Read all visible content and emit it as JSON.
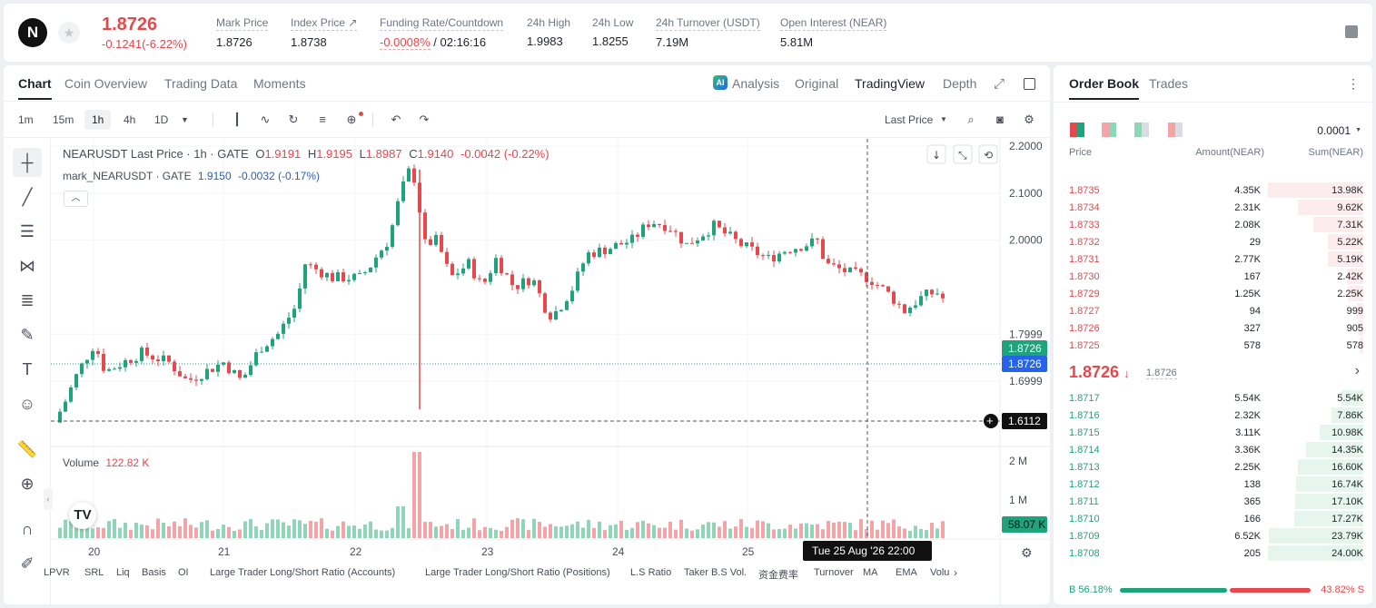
{
  "header": {
    "logo_text": "N",
    "last_price": "1.8726",
    "price_change": "-0.1241(-6.22%)",
    "stats": [
      {
        "label": "Mark Price",
        "value": "1.8726"
      },
      {
        "label": "Index Price ↗",
        "value": "1.8738"
      },
      {
        "label": "Funding Rate/Countdown",
        "value_red": "-0.0008%",
        "value": "/ 02:16:16"
      },
      {
        "label": "24h High",
        "value": "1.9983"
      },
      {
        "label": "24h Low",
        "value": "1.8255"
      },
      {
        "label": "24h Turnover (USDT)",
        "value": "7.19M"
      },
      {
        "label": "Open Interest (NEAR)",
        "value": "5.81M"
      }
    ]
  },
  "chart_tabs": [
    "Chart",
    "Coin Overview",
    "Trading Data",
    "Moments"
  ],
  "chart_views": [
    "Analysis",
    "Original",
    "TradingView",
    "Depth"
  ],
  "timeframes": [
    "1m",
    "15m",
    "1h",
    "4h",
    "1D"
  ],
  "price_source": "Last Price",
  "legend": {
    "main": "NEARUSDT Last Price · 1h · GATE",
    "o_label": "O",
    "o": "1.9191",
    "h_label": "H",
    "h": "1.9195",
    "l_label": "L",
    "l": "1.8987",
    "c_label": "C",
    "c": "1.9140",
    "chg": "-0.0042 (-0.22%)",
    "mark": "mark_NEARUSDT · GATE",
    "mark_v": "1.9150",
    "mark_chg": "-0.0032 (-0.17%)",
    "volume_label": "Volume",
    "volume_value": "122.82 K"
  },
  "price_labels": {
    "last": "1.8726",
    "mark": "1.8726",
    "cross": "1.6112",
    "vol_last": "58.07 K"
  },
  "crosshair_time": "Tue 25 Aug '26   22:00",
  "bottom_indicators": [
    "LPVR",
    "SRL",
    "Liq",
    "Basis",
    "OI",
    "Large Trader Long/Short Ratio (Accounts)",
    "Large Trader Long/Short Ratio (Positions)",
    "L.S Ratio",
    "Taker B.S Vol.",
    "资金费率",
    "Turnover",
    "MA",
    "EMA",
    "Volu"
  ],
  "chart_data": {
    "type": "candlestick",
    "y_ticks": [
      "2.2000",
      "2.1000",
      "2.0000",
      "1.7999",
      "1.6999"
    ],
    "vol_ticks": [
      "2 M",
      "1 M"
    ],
    "x_ticks": [
      "20",
      "21",
      "22",
      "23",
      "24",
      "25"
    ],
    "ylim": [
      1.6112,
      2.2
    ],
    "colors": {
      "up": "#1fa37a",
      "down": "#e5484d",
      "up_vol": "#8fd6b9",
      "down_vol": "#f4a4a7"
    }
  },
  "orderbook": {
    "tabs": [
      "Order Book",
      "Trades"
    ],
    "precision": "0.0001",
    "columns": [
      "Price",
      "Amount(NEAR)",
      "Sum(NEAR)"
    ],
    "asks": [
      {
        "p": "1.8735",
        "a": "4.35K",
        "s": "13.98K",
        "d": 1.0
      },
      {
        "p": "1.8734",
        "a": "2.31K",
        "s": "9.62K",
        "d": 0.69
      },
      {
        "p": "1.8733",
        "a": "2.08K",
        "s": "7.31K",
        "d": 0.52
      },
      {
        "p": "1.8732",
        "a": "29",
        "s": "5.22K",
        "d": 0.37
      },
      {
        "p": "1.8731",
        "a": "2.77K",
        "s": "5.19K",
        "d": 0.37
      },
      {
        "p": "1.8730",
        "a": "167",
        "s": "2.42K",
        "d": 0.17
      },
      {
        "p": "1.8729",
        "a": "1.25K",
        "s": "2.25K",
        "d": 0.16
      },
      {
        "p": "1.8727",
        "a": "94",
        "s": "999",
        "d": 0.07
      },
      {
        "p": "1.8726",
        "a": "327",
        "s": "905",
        "d": 0.06
      },
      {
        "p": "1.8725",
        "a": "578",
        "s": "578",
        "d": 0.04
      }
    ],
    "mid_price": "1.8726",
    "mid_arrow": "↓",
    "mid_mark": "1.8726",
    "bids": [
      {
        "p": "1.8717",
        "a": "5.54K",
        "s": "5.54K",
        "d": 0.23
      },
      {
        "p": "1.8716",
        "a": "2.32K",
        "s": "7.86K",
        "d": 0.33
      },
      {
        "p": "1.8715",
        "a": "3.11K",
        "s": "10.98K",
        "d": 0.46
      },
      {
        "p": "1.8714",
        "a": "3.36K",
        "s": "14.35K",
        "d": 0.6
      },
      {
        "p": "1.8713",
        "a": "2.25K",
        "s": "16.60K",
        "d": 0.69
      },
      {
        "p": "1.8712",
        "a": "138",
        "s": "16.74K",
        "d": 0.7
      },
      {
        "p": "1.8711",
        "a": "365",
        "s": "17.10K",
        "d": 0.71
      },
      {
        "p": "1.8710",
        "a": "166",
        "s": "17.27K",
        "d": 0.72
      },
      {
        "p": "1.8709",
        "a": "6.52K",
        "s": "23.79K",
        "d": 0.99
      },
      {
        "p": "1.8708",
        "a": "205",
        "s": "24.00K",
        "d": 1.0
      }
    ],
    "buy_ratio": "B 56.18%",
    "sell_ratio": "43.82% S",
    "buy_frac": 0.5618
  }
}
